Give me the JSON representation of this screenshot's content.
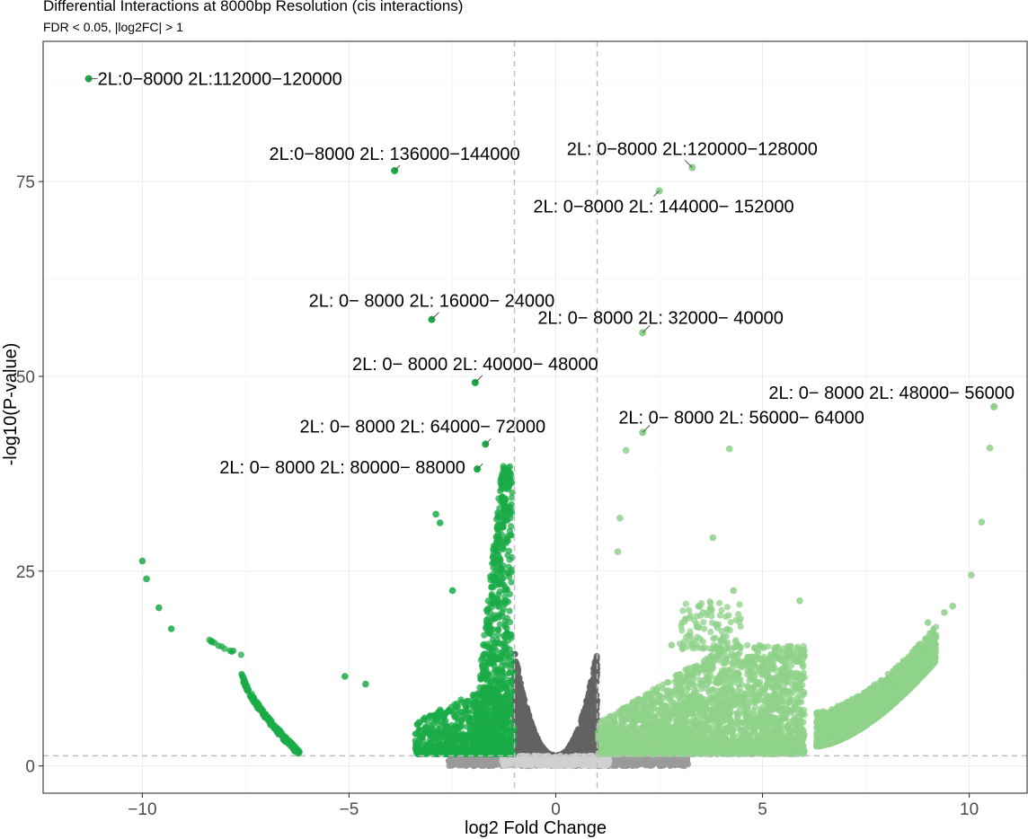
{
  "title": "Differential Interactions at 8000bp Resolution (cis interactions)",
  "subtitle": "FDR < 0.05, |log2FC| > 1",
  "chart_data": {
    "type": "scatter",
    "title": "Differential Interactions at 8000bp Resolution (cis interactions)",
    "subtitle": "FDR < 0.05, |log2FC| > 1",
    "xlabel": "log2 Fold Change",
    "ylabel": "-log10(P-value)",
    "xlim": [
      -12.4,
      11.4
    ],
    "ylim": [
      -3.5,
      93
    ],
    "x_ticks": [
      -10,
      -5,
      0,
      5,
      10
    ],
    "x_tick_labels": [
      "−10",
      "−5",
      "0",
      "5",
      "10"
    ],
    "y_ticks": [
      0,
      25,
      50,
      75
    ],
    "y_tick_labels": [
      "0",
      "25",
      "50",
      "75"
    ],
    "grid": true,
    "thresholds": {
      "log2fc": [
        -1,
        1
      ],
      "neg_log10_p": 1.3
    },
    "colors": {
      "down_significant": "#1aab47",
      "up_significant": "#8fd18a",
      "not_significant_dark": "#636363",
      "not_significant_mid": "#9a9a9a",
      "not_significant_light": "#cfcfcf",
      "threshold_line": "#bdbdbd",
      "grid": "#ebebeb"
    },
    "labeled_points": [
      {
        "x": -11.3,
        "y": 88.2,
        "label": "2L:0−8000 2L:112000−120000",
        "group": "down"
      },
      {
        "x": -3.9,
        "y": 76.4,
        "label": "2L:0−8000 2L: 136000−144000",
        "group": "down"
      },
      {
        "x": 3.3,
        "y": 76.8,
        "label": "2L: 0−8000  2L:120000−128000",
        "group": "up"
      },
      {
        "x": 2.5,
        "y": 73.8,
        "label": "2L: 0−8000  2L: 144000− 152000",
        "group": "up"
      },
      {
        "x": -3.0,
        "y": 57.3,
        "label": "2L: 0− 8000  2L: 16000− 24000",
        "group": "down"
      },
      {
        "x": 2.1,
        "y": 55.6,
        "label": "2L: 0− 8000    2L: 32000− 40000",
        "group": "up"
      },
      {
        "x": -1.95,
        "y": 49.2,
        "label": "2L: 0− 8000   2L: 40000− 48000",
        "group": "down"
      },
      {
        "x": 10.6,
        "y": 46.1,
        "label": "2L: 0− 8000   2L: 48000− 56000",
        "group": "up"
      },
      {
        "x": 2.1,
        "y": 42.8,
        "label": "2L:  0− 8000    2L: 56000− 64000",
        "group": "up"
      },
      {
        "x": -1.7,
        "y": 41.3,
        "label": "2L: 0− 8000   2L: 64000− 72000",
        "group": "down"
      },
      {
        "x": -1.9,
        "y": 38.1,
        "label": "2L: 0− 8000     2L: 80000− 88000",
        "group": "down"
      }
    ],
    "extra_points": [
      {
        "x": -10.0,
        "y": 26.3,
        "group": "down"
      },
      {
        "x": -9.9,
        "y": 24.0,
        "group": "down"
      },
      {
        "x": -9.6,
        "y": 20.3,
        "group": "down"
      },
      {
        "x": -9.3,
        "y": 17.6,
        "group": "down"
      },
      {
        "x": -5.1,
        "y": 11.5,
        "group": "down"
      },
      {
        "x": -4.6,
        "y": 10.5,
        "group": "down"
      },
      {
        "x": -2.9,
        "y": 32.3,
        "group": "down"
      },
      {
        "x": -2.8,
        "y": 31.2,
        "group": "down"
      },
      {
        "x": -2.5,
        "y": 22.5,
        "group": "down"
      },
      {
        "x": 1.7,
        "y": 40.5,
        "group": "up"
      },
      {
        "x": 4.2,
        "y": 40.7,
        "group": "up"
      },
      {
        "x": 10.5,
        "y": 40.8,
        "group": "up"
      },
      {
        "x": 3.8,
        "y": 29.3,
        "group": "up"
      },
      {
        "x": 1.55,
        "y": 31.8,
        "group": "up"
      },
      {
        "x": 10.3,
        "y": 31.3,
        "group": "up"
      },
      {
        "x": 1.5,
        "y": 27.5,
        "group": "up"
      },
      {
        "x": 10.05,
        "y": 24.5,
        "group": "up"
      },
      {
        "x": 5.9,
        "y": 21.2,
        "group": "up"
      },
      {
        "x": 4.3,
        "y": 22.5,
        "group": "up"
      },
      {
        "x": 2.8,
        "y": 15.5,
        "group": "up"
      },
      {
        "x": 5.6,
        "y": 14.0,
        "group": "up"
      },
      {
        "x": 9.0,
        "y": 18.4,
        "group": "up"
      },
      {
        "x": 9.4,
        "y": 19.7,
        "group": "up"
      },
      {
        "x": 9.6,
        "y": 20.5,
        "group": "up"
      }
    ],
    "clusters": [
      {
        "group": "down",
        "shape": "curve",
        "x": [
          -8.6,
          -7.6
        ],
        "y": [
          17.0,
          14.3
        ],
        "n": 12
      },
      {
        "group": "down",
        "shape": "curve",
        "x": [
          -7.6,
          -6.2
        ],
        "y": [
          12.0,
          1.6
        ],
        "n": 180,
        "jitter": 0.7
      },
      {
        "group": "down",
        "shape": "column",
        "x": [
          -2.0,
          -1.0
        ],
        "y": [
          1.8,
          38.5
        ],
        "n": 900
      },
      {
        "group": "down",
        "shape": "blob",
        "x": [
          -3.4,
          -1.0
        ],
        "y": [
          1.5,
          12.0
        ],
        "n": 600
      },
      {
        "group": "up",
        "shape": "wedge",
        "x": [
          1.0,
          6.0
        ],
        "y": [
          1.5,
          15.0
        ],
        "n": 2600
      },
      {
        "group": "up",
        "shape": "blob",
        "x": [
          3.0,
          4.5
        ],
        "y": [
          15.0,
          21.5
        ],
        "n": 120
      },
      {
        "group": "up",
        "shape": "band",
        "x": [
          6.3,
          9.2
        ],
        "y": [
          2.5,
          18.0
        ],
        "n": 1800
      },
      {
        "group": "ns_dark",
        "shape": "cone",
        "x": [
          -2.4,
          2.6
        ],
        "y": [
          1.3,
          15.0
        ],
        "n": 1600
      },
      {
        "group": "ns_mid",
        "shape": "floor",
        "x": [
          -2.6,
          3.2
        ],
        "y": [
          0.0,
          1.3
        ],
        "n": 900
      },
      {
        "group": "ns_light",
        "shape": "floor",
        "x": [
          -1.3,
          1.3
        ],
        "y": [
          0.0,
          1.3
        ],
        "n": 500
      }
    ]
  }
}
